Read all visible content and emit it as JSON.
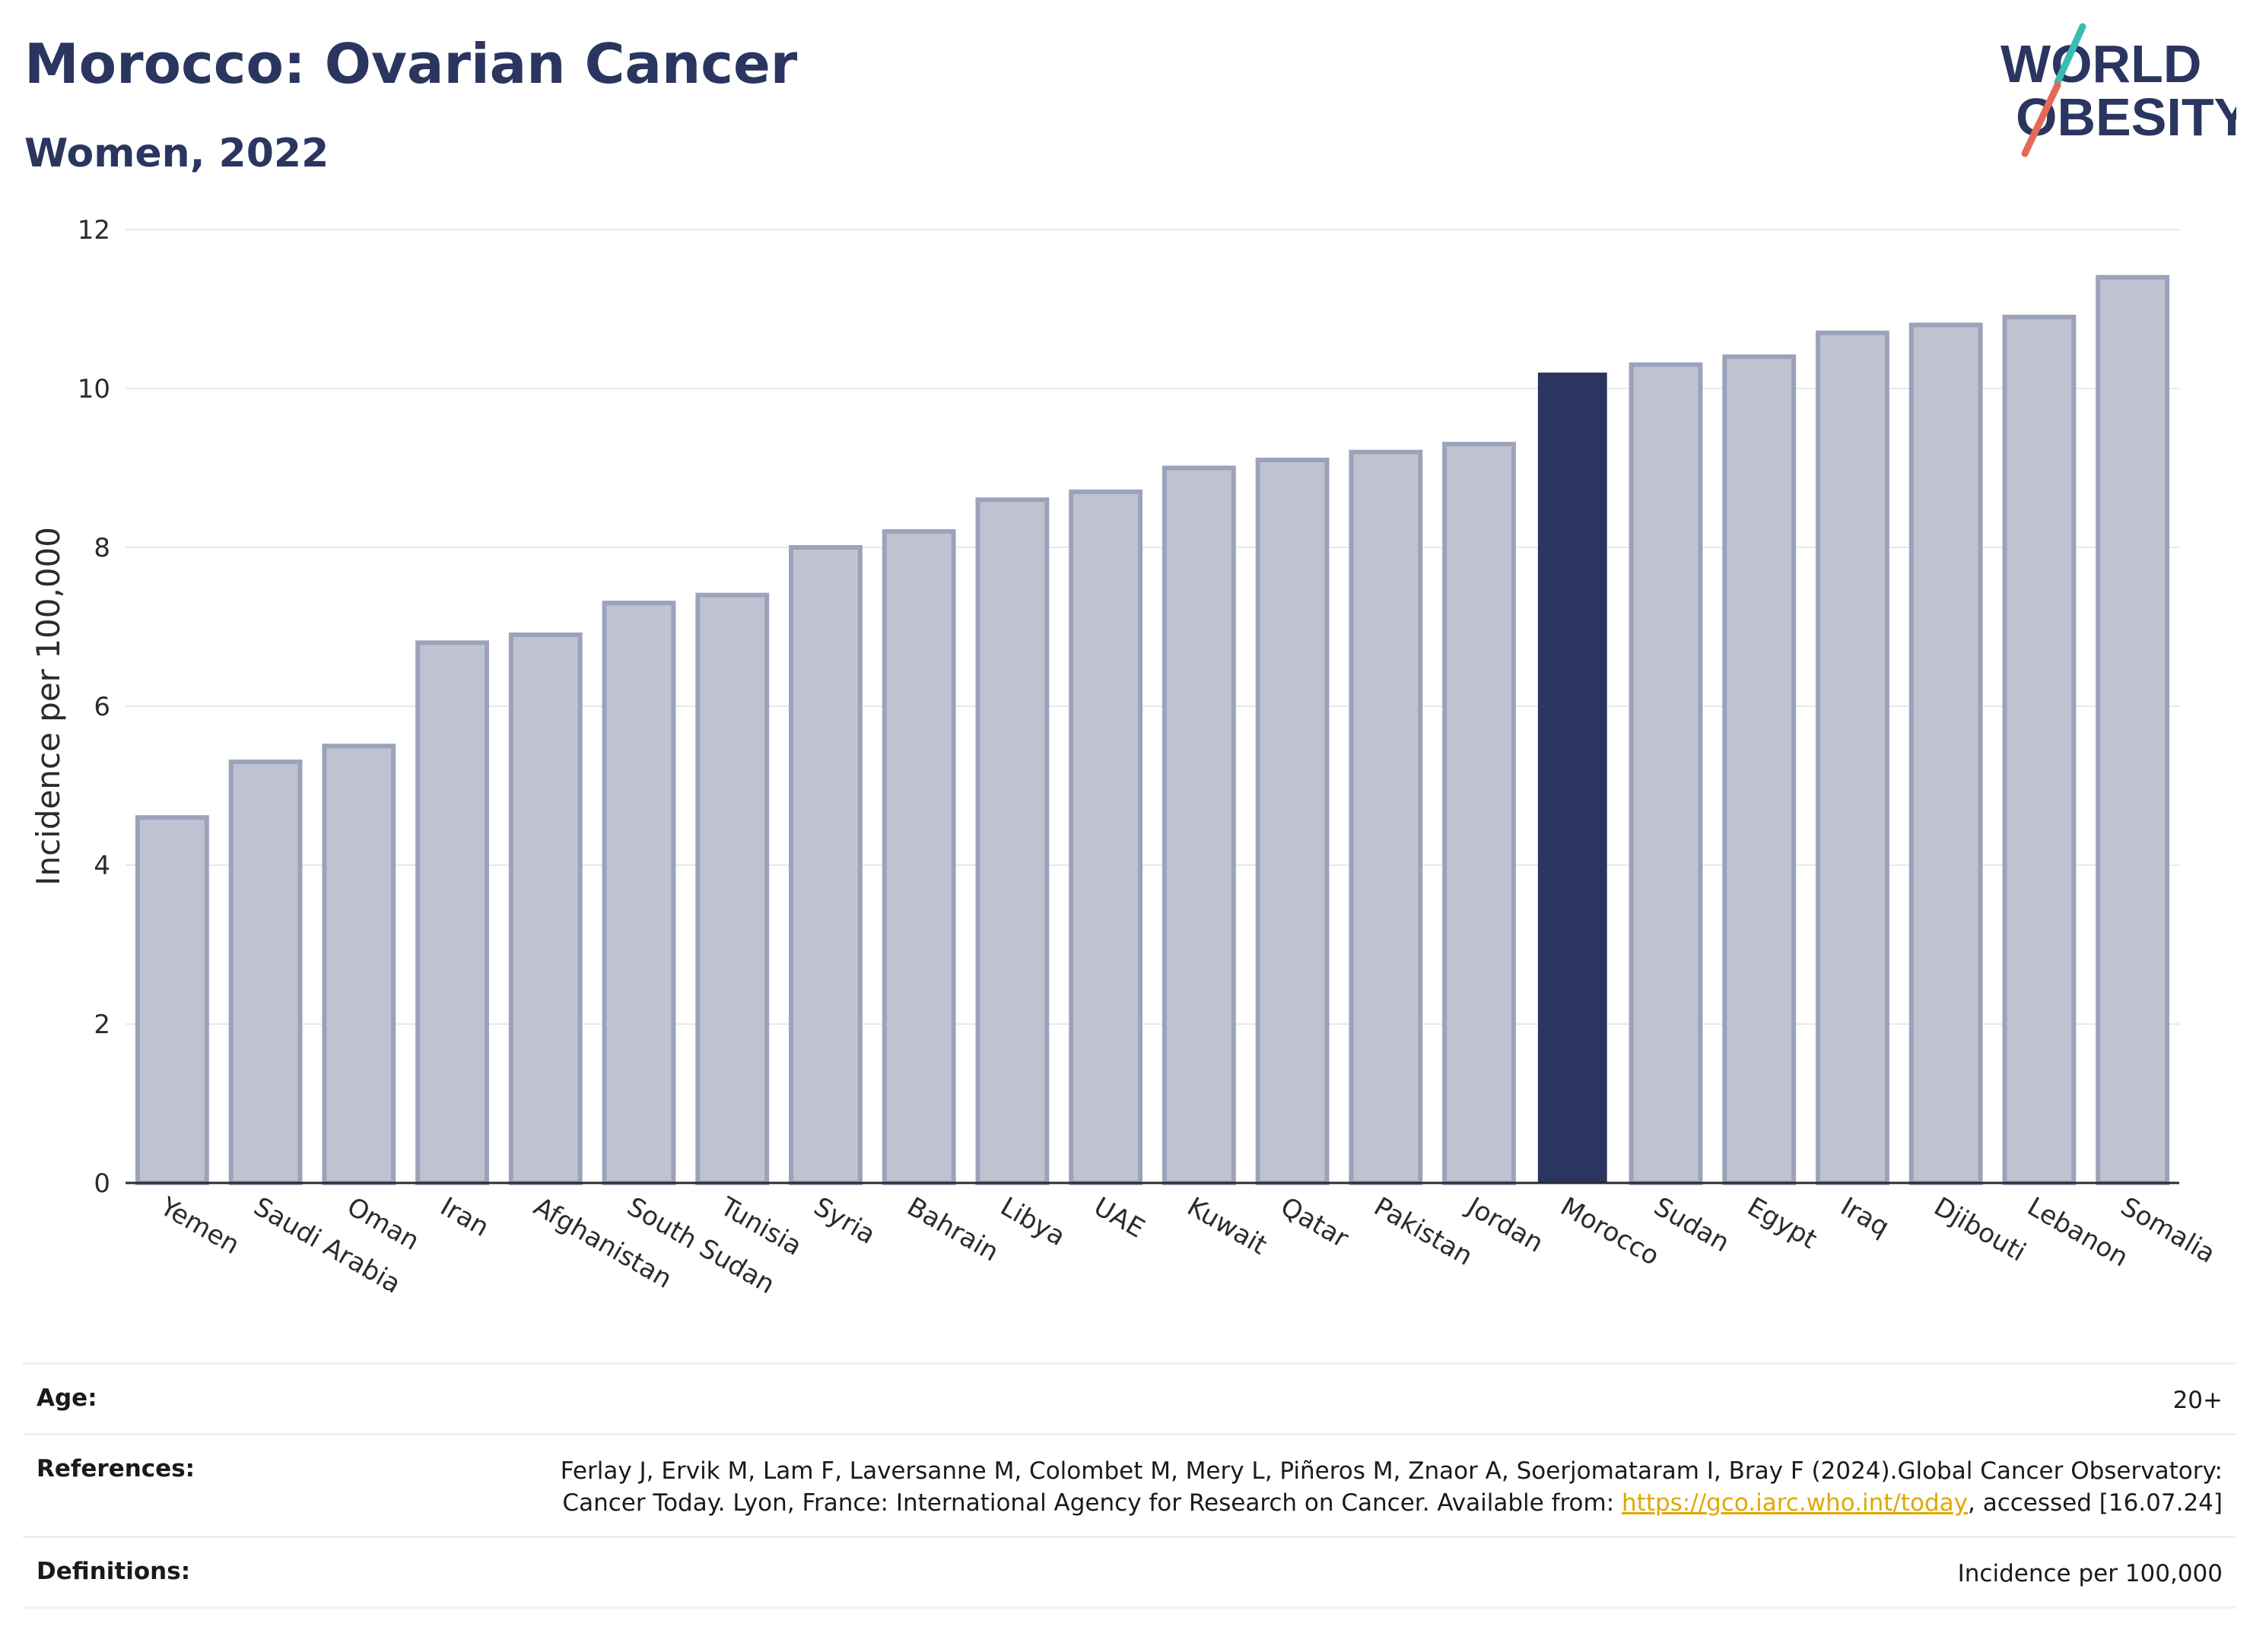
{
  "header": {
    "title": "Morocco: Ovarian Cancer",
    "subtitle": "Women, 2022"
  },
  "logo": {
    "line1": "WORLD",
    "line2": "OBESITY",
    "colors": {
      "text": "#2a3560",
      "slash_top": "#3bbcb3",
      "slash_bottom": "#e36a5a"
    }
  },
  "chart_data": {
    "type": "bar",
    "title": "",
    "xlabel": "",
    "ylabel": "Incidence per 100,000",
    "ylim": [
      0,
      12
    ],
    "yticks": [
      0,
      2,
      4,
      6,
      8,
      10,
      12
    ],
    "grid": true,
    "highlight": "Morocco",
    "colors": {
      "bar": "#bfc2d0",
      "bar_border": "#9da2bb",
      "highlight": "#2a3560",
      "grid": "#e6e8ee",
      "axis": "#2b2b2b"
    },
    "categories": [
      "Yemen",
      "Saudi Arabia",
      "Oman",
      "Iran",
      "Afghanistan",
      "South Sudan",
      "Tunisia",
      "Syria",
      "Bahrain",
      "Libya",
      "UAE",
      "Kuwait",
      "Qatar",
      "Pakistan",
      "Jordan",
      "Morocco",
      "Sudan",
      "Egypt",
      "Iraq",
      "Djibouti",
      "Lebanon",
      "Somalia"
    ],
    "values": [
      4.6,
      5.3,
      5.5,
      6.8,
      6.9,
      7.3,
      7.4,
      8.0,
      8.2,
      8.6,
      8.7,
      9.0,
      9.1,
      9.2,
      9.3,
      10.2,
      10.3,
      10.4,
      10.7,
      10.8,
      10.9,
      11.4
    ]
  },
  "info": {
    "age_label": "Age:",
    "age_value": "20+",
    "references_label": "References:",
    "references_text_1": "Ferlay J, Ervik M, Lam F, Laversanne M, Colombet M, Mery L, Piñeros M, Znaor A, Soerjomataram I, Bray F (2024).Global Cancer Observatory: Cancer Today. Lyon, France: International Agency for Research on Cancer. Available from: ",
    "references_link": "https://gco.iarc.who.int/today",
    "references_text_2": ", accessed [16.07.24]",
    "definitions_label": "Definitions:",
    "definitions_value": "Incidence per 100,000"
  }
}
